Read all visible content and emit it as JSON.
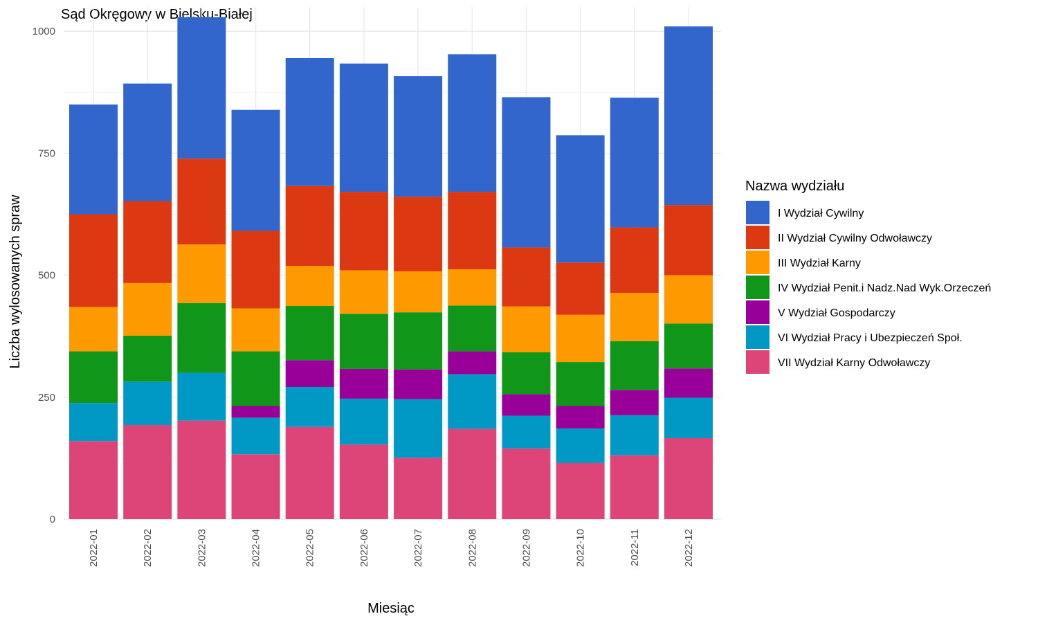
{
  "chart_data": {
    "type": "bar",
    "stacked": true,
    "title": "Sąd Okręgowy w Bielsku-Białej",
    "xlabel": "Miesiąc",
    "ylabel": "Liczba wylosowanych spraw",
    "ylim": [
      0,
      1050
    ],
    "y_ticks": [
      0,
      250,
      500,
      750,
      1000
    ],
    "grid": true,
    "legend_title": "Nazwa wydziału",
    "legend_position": "right",
    "categories": [
      "2022-01",
      "2022-02",
      "2022-03",
      "2022-04",
      "2022-05",
      "2022-06",
      "2022-07",
      "2022-08",
      "2022-09",
      "2022-10",
      "2022-11",
      "2022-12"
    ],
    "series": [
      {
        "name": "I Wydział Cywilny",
        "color": "#3366cc",
        "values": [
          225,
          241,
          290,
          248,
          262,
          263,
          247,
          282,
          308,
          261,
          266,
          366
        ]
      },
      {
        "name": "II Wydział Cywilny Odwoławczy",
        "color": "#dc3912",
        "values": [
          190,
          168,
          176,
          159,
          164,
          161,
          153,
          159,
          121,
          107,
          134,
          144
        ]
      },
      {
        "name": "III Wydział Karny",
        "color": "#ff9900",
        "values": [
          91,
          108,
          120,
          88,
          82,
          89,
          84,
          74,
          94,
          97,
          99,
          99
        ]
      },
      {
        "name": "IV Wydział Penit.i Nadz.Nad Wyk.Orzeczeń",
        "color": "#109618",
        "values": [
          106,
          94,
          143,
          112,
          111,
          113,
          117,
          94,
          86,
          90,
          100,
          92
        ]
      },
      {
        "name": "V Wydział Gospodarczy",
        "color": "#990099",
        "values": [
          0,
          0,
          0,
          24,
          55,
          61,
          61,
          47,
          44,
          46,
          52,
          60
        ]
      },
      {
        "name": "VI Wydział Pracy i Ubezpieczeń Społ.",
        "color": "#0099c6",
        "values": [
          78,
          89,
          98,
          75,
          82,
          94,
          120,
          112,
          67,
          71,
          82,
          83
        ]
      },
      {
        "name": "VII Wydział Karny Odwoławczy",
        "color": "#dd4477",
        "values": [
          160,
          193,
          202,
          133,
          189,
          153,
          126,
          185,
          145,
          115,
          131,
          166
        ]
      }
    ]
  }
}
